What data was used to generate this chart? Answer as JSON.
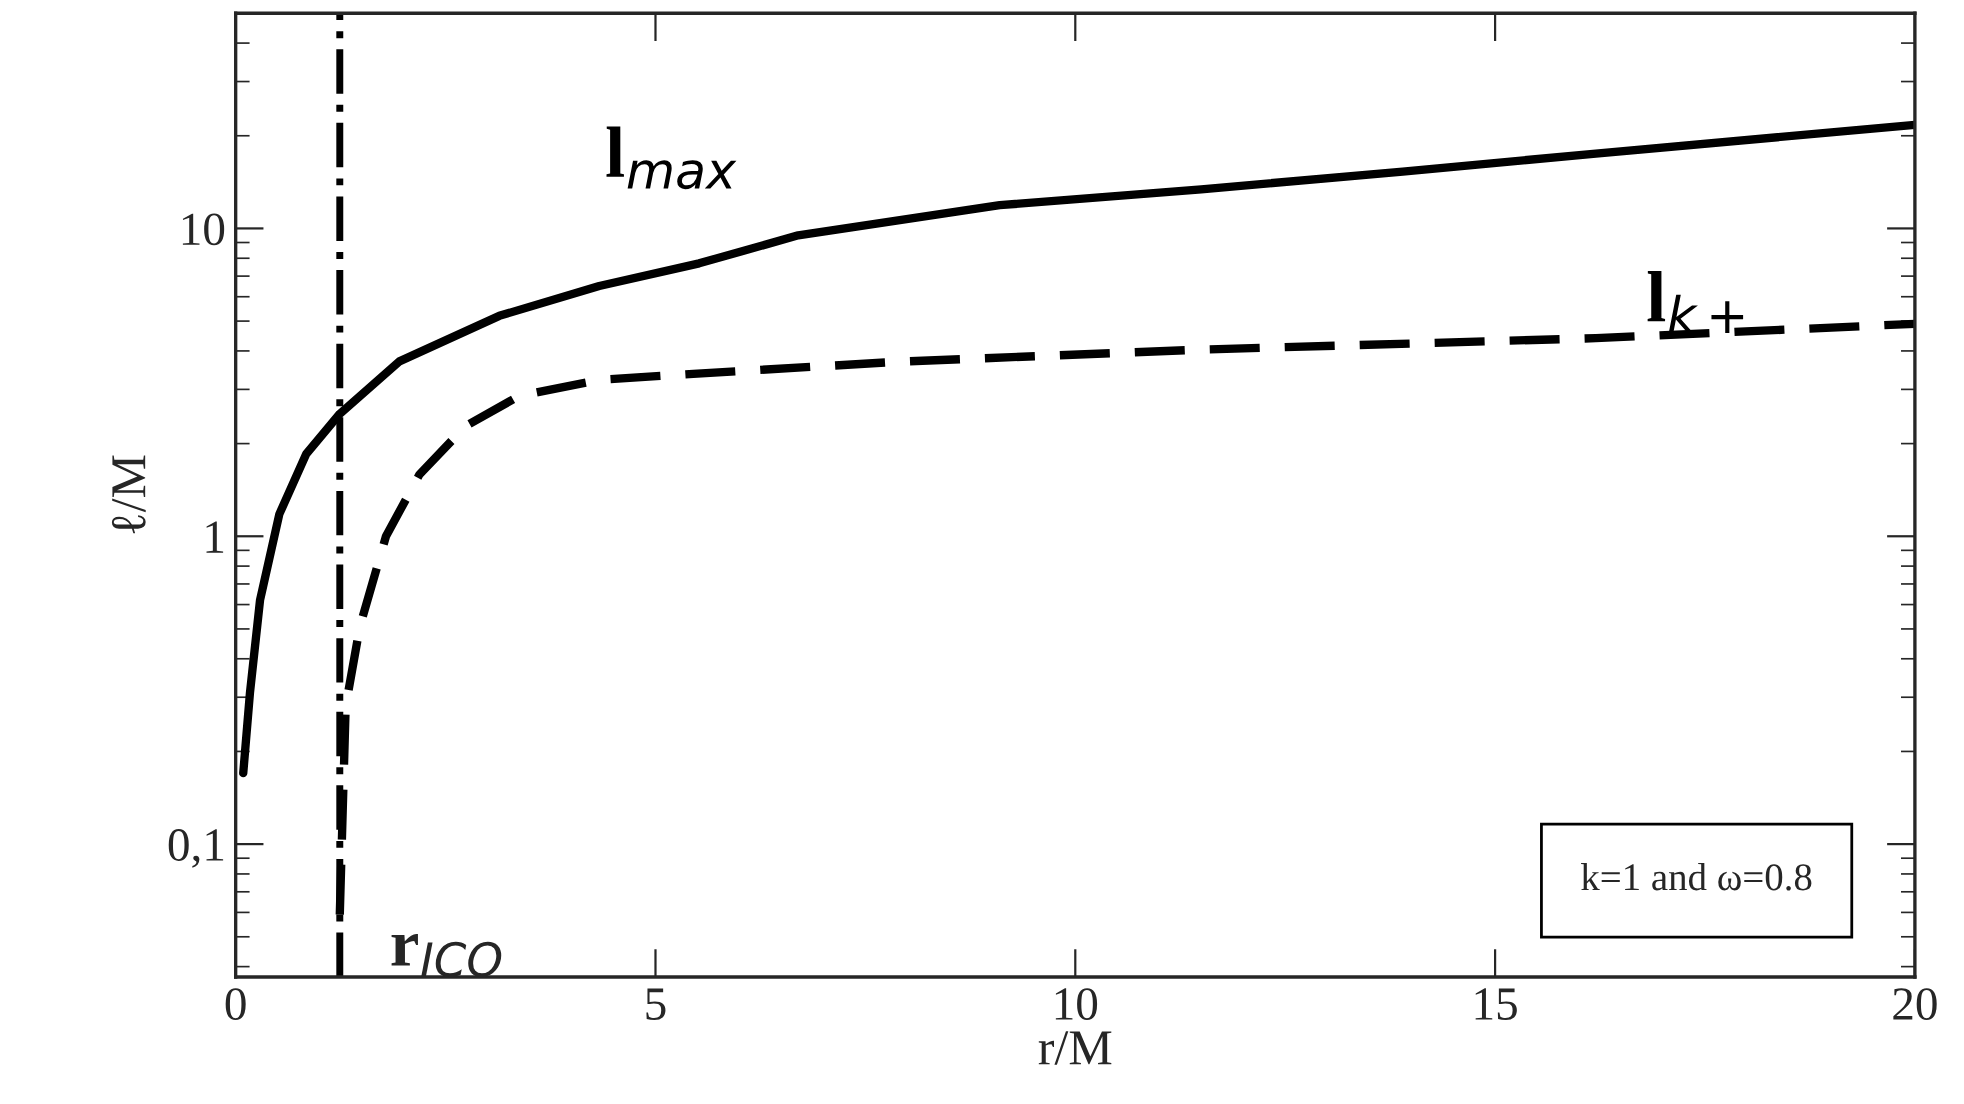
{
  "chart_data": {
    "type": "line",
    "xlabel": "r/M",
    "ylabel": "ℓ/M",
    "log": "y",
    "xlim": [
      0,
      20
    ],
    "xticks": [
      0,
      5,
      10,
      15,
      20
    ],
    "ylim": [
      0.037,
      50
    ],
    "yticks": [
      {
        "value": 0.1,
        "label": "0,1"
      },
      1,
      10
    ],
    "grid": false,
    "legend": false,
    "series": [
      {
        "name": "l$_{max}$",
        "color": "#000000",
        "line_style": "solid",
        "x": [
          0.09,
          0.17,
          0.29,
          0.52,
          0.84,
          1.24,
          1.95,
          3.14,
          4.33,
          5.52,
          6.7,
          9.1,
          11.5,
          13.9,
          16.2,
          20
        ],
        "values": [
          0.17,
          0.31,
          0.62,
          1.18,
          1.85,
          2.5,
          3.7,
          5.2,
          6.5,
          7.7,
          9.5,
          11.9,
          13.4,
          15.3,
          17.5,
          21.7
        ]
      },
      {
        "name": "l$_{k+}$",
        "color": "#000000",
        "line_style": "dashed",
        "x": [
          1.24,
          1.31,
          1.48,
          1.79,
          2.19,
          2.74,
          3.38,
          4.33,
          5.45,
          7.9,
          11.5,
          16.2,
          20
        ],
        "values": [
          0.059,
          0.28,
          0.51,
          1.0,
          1.59,
          2.28,
          2.86,
          3.22,
          3.37,
          3.69,
          4.04,
          4.4,
          4.9
        ]
      }
    ],
    "ref_lines": [
      {
        "axis": "x",
        "value": 1.24,
        "label": "r$_{ICO}$",
        "color": "#000000",
        "line_style": "dashdot"
      }
    ],
    "annotations": [
      "k=1 and ω=0.8"
    ]
  }
}
